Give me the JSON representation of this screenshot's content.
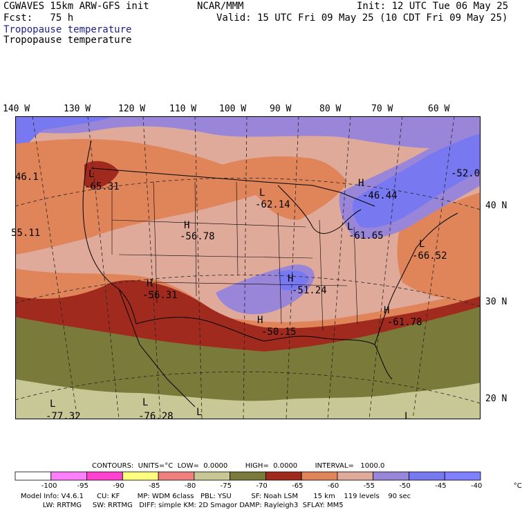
{
  "header": {
    "model": "CGWAVES 15km ARW-GFS init",
    "org": "NCAR/MMM",
    "init": "Init: 12 UTC Tue 06 May 25",
    "fcst": "Fcst:   75 h",
    "valid": "Valid: 15 UTC Fri 09 May 25 (10 CDT Fri 09 May 25)",
    "field_title": "Tropopause temperature",
    "field_subtitle": "Tropopause temperature"
  },
  "axes": {
    "longitudes": [
      "140 W",
      "130 W",
      "120 W",
      "110 W",
      "100 W",
      "90 W",
      "80 W",
      "70 W",
      "60 W"
    ],
    "latitudes": [
      "40 N",
      "30 N",
      "20 N"
    ]
  },
  "map_labels": [
    {
      "kind": "L",
      "value": "-65.31"
    },
    {
      "kind": "H",
      "value": "-56.78"
    },
    {
      "kind": "L",
      "value": "-62.14"
    },
    {
      "kind": "H",
      "value": "-46.44"
    },
    {
      "kind": "L",
      "value": "-61.65"
    },
    {
      "kind": "L",
      "value": "-66.52"
    },
    {
      "kind": "H",
      "value": "-56.31"
    },
    {
      "kind": "H",
      "value": "-51.24"
    },
    {
      "kind": "H",
      "value": "-50.15"
    },
    {
      "kind": "H",
      "value": "-61.78"
    },
    {
      "kind": "L",
      "value": "-77.32"
    },
    {
      "kind": "L",
      "value": "-76.28"
    },
    {
      "kind": "L",
      "value": ""
    },
    {
      "kind": "L",
      "value": ""
    },
    {
      "kind": "",
      "value": "46.1"
    },
    {
      "kind": "",
      "value": "55.11"
    },
    {
      "kind": "",
      "value": "-52.0"
    }
  ],
  "legend": {
    "contours_line": "CONTOURS:  UNITS=°C  LOW=  0.0000        HIGH=  0.0000        INTERVAL=   1000.0",
    "ticks": [
      "-100",
      "-95",
      "-90",
      "-85",
      "-80",
      "-75",
      "-70",
      "-65",
      "-60",
      "-55",
      "-50",
      "-45",
      "-40",
      "°C"
    ],
    "colors": [
      "#ffffff",
      "#ff80ff",
      "#ff40d0",
      "#ffff80",
      "#f08080",
      "#c8c896",
      "#7a7a3a",
      "#a02a1e",
      "#e0845a",
      "#e0aa9a",
      "#9a86d8",
      "#7878f0",
      "#8080ff"
    ]
  },
  "footer": {
    "line1": "Model Info: V4.6.1      CU: KF        MP: WDM 6class   PBL: YSU         SF: Noah LSM       15 km    119 levels    90 sec",
    "line2": "          LW: RRTMG     SW: RRTMG   DIFF: simple KM: 2D Smagor DAMP: Rayleigh3  SFLAY: MM5"
  }
}
